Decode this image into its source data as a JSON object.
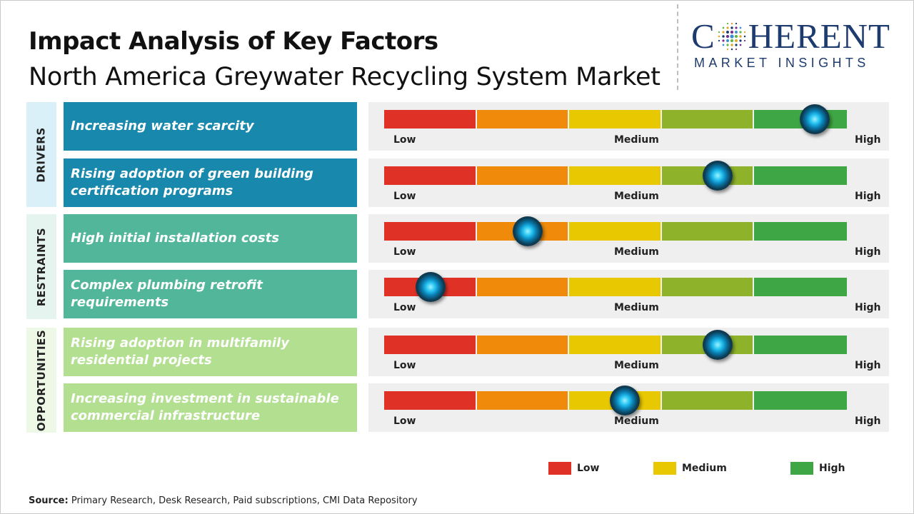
{
  "header": {
    "title": "Impact Analysis of Key Factors",
    "subtitle": "North America Greywater Recycling System Market"
  },
  "logo": {
    "top": "COHERENT",
    "top_left": "C",
    "top_right": "HERENT",
    "bottom": "MARKET INSIGHTS"
  },
  "chart_data": {
    "type": "gauge",
    "scale": [
      "Low",
      "Medium",
      "High"
    ],
    "segment_colors": [
      "#e03127",
      "#ef8a0a",
      "#e8c800",
      "#8eb22a",
      "#3fa645"
    ],
    "categories": [
      {
        "name": "DRIVERS",
        "color": "#1888ad",
        "band": "#daf0f9",
        "factors": [
          {
            "label": "Increasing water scarcity",
            "impact": 0.93
          },
          {
            "label": "Rising adoption of green building certification programs",
            "impact": 0.72
          }
        ]
      },
      {
        "name": "RESTRAINTS",
        "color": "#52b79a",
        "band": "#e5f4ef",
        "factors": [
          {
            "label": "High initial installation costs",
            "impact": 0.31
          },
          {
            "label": "Complex plumbing retrofit requirements",
            "impact": 0.1
          }
        ]
      },
      {
        "name": "OPPORTUNITIES",
        "color": "#b3df91",
        "band": "#eef8e6",
        "factors": [
          {
            "label": "Rising adoption in multifamily residential projects",
            "impact": 0.72
          },
          {
            "label": "Increasing investment in sustainable commercial infrastructure",
            "impact": 0.52
          }
        ]
      }
    ],
    "legend": [
      {
        "label": "Low",
        "color": "#e03127"
      },
      {
        "label": "Medium",
        "color": "#e8c800"
      },
      {
        "label": "High",
        "color": "#3fa645"
      }
    ]
  },
  "source": {
    "label": "Source:",
    "text": "Primary Research, Desk Research, Paid subscriptions, CMI Data Repository"
  }
}
